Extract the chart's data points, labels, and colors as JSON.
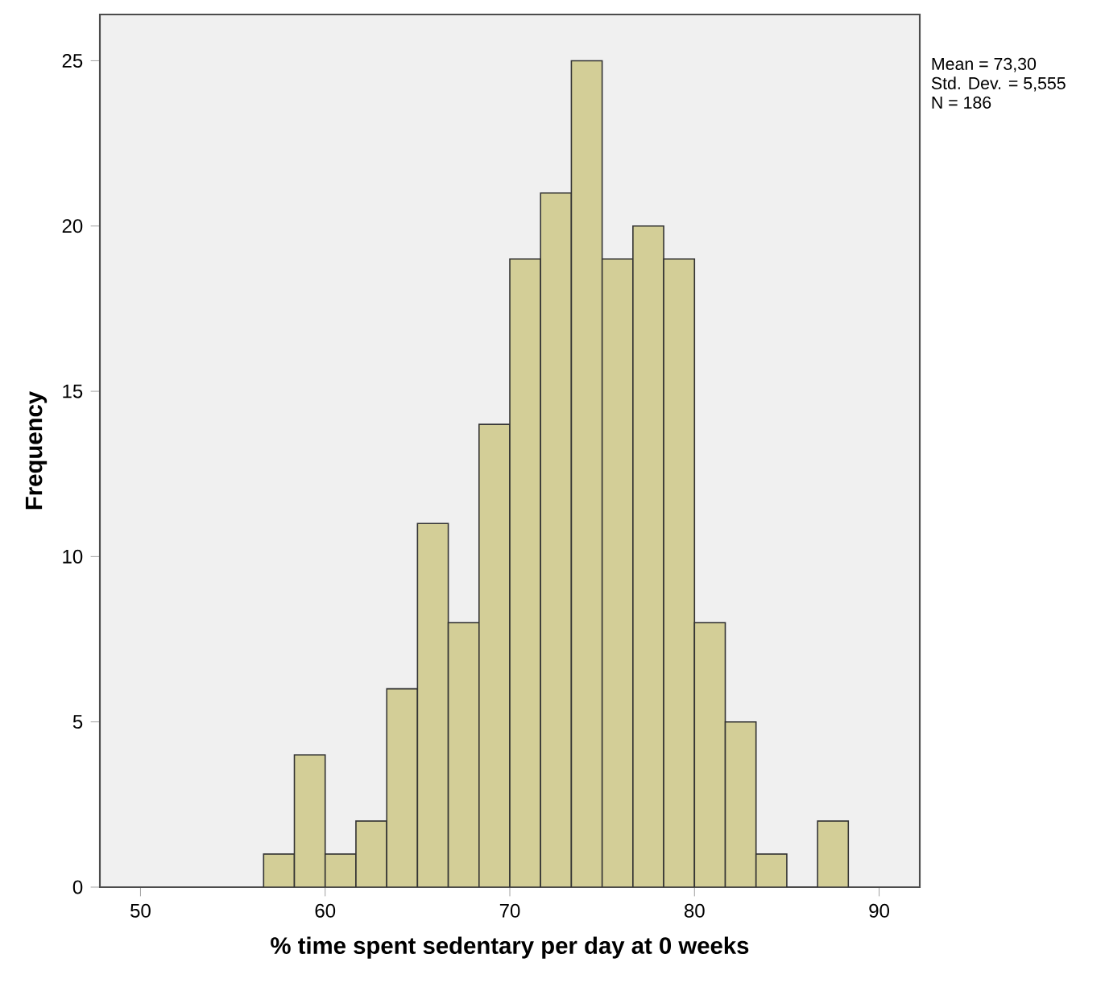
{
  "chart_data": {
    "type": "histogram",
    "xlabel": "% time spent sedentary per day at 0 weeks",
    "ylabel": "Frequency",
    "bins": [
      56.667,
      58.333,
      60,
      61.667,
      63.333,
      65,
      66.667,
      68.333,
      70,
      71.667,
      73.333,
      75,
      76.667,
      78.333,
      80,
      81.667,
      83.333,
      85,
      86.667,
      88.333
    ],
    "values": [
      1,
      4,
      1,
      2,
      6,
      11,
      8,
      14,
      19,
      21,
      25,
      19,
      20,
      19,
      8,
      5,
      1,
      0,
      2
    ],
    "color": "#d3ce97",
    "xlim": [
      47.8,
      92.2
    ],
    "ylim": [
      0,
      26.4
    ],
    "xticks": [
      50,
      60,
      70,
      80,
      90
    ],
    "yticks": [
      0,
      5,
      10,
      15,
      20,
      25
    ],
    "grid": false,
    "annotations": [
      "Mean = 73,30",
      "Std. Dev. = 5,555",
      "N = 186"
    ]
  }
}
